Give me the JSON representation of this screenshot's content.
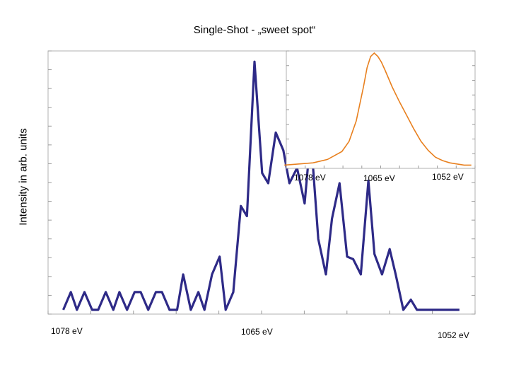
{
  "chart_data": [
    {
      "type": "line",
      "title": "Single-Shot - „sweet spot“",
      "ylabel": "Intensity in arb. units",
      "xlabel": "",
      "x_tick_labels": [
        "1078 eV",
        "1065 eV",
        "1052 eV"
      ],
      "xlim": [
        1079,
        1050.5
      ],
      "ylim": [
        0,
        1
      ],
      "grid": false,
      "series": [
        {
          "color": "#2e2a87",
          "x": [
            1078.0,
            1077.5,
            1077.1,
            1076.6,
            1076.1,
            1075.7,
            1075.2,
            1074.7,
            1074.3,
            1073.8,
            1073.3,
            1072.9,
            1072.4,
            1071.9,
            1071.5,
            1071.0,
            1070.5,
            1070.1,
            1069.6,
            1069.1,
            1068.7,
            1068.2,
            1067.7,
            1067.3,
            1066.8,
            1066.3,
            1065.9,
            1065.4,
            1064.9,
            1064.5,
            1064.0,
            1063.5,
            1063.1,
            1062.6,
            1062.1,
            1061.7,
            1061.2,
            1060.7,
            1060.3,
            1059.8,
            1059.3,
            1058.9,
            1058.4,
            1057.9,
            1057.5,
            1057.0,
            1056.5,
            1056.1,
            1055.6,
            1055.1,
            1054.7,
            1054.2,
            1053.7,
            1053.3,
            1052.8,
            1052.3,
            1051.9
          ],
          "y": [
            0.0,
            0.07,
            0.0,
            0.07,
            0.0,
            0.0,
            0.07,
            0.0,
            0.07,
            0.0,
            0.07,
            0.07,
            0.0,
            0.07,
            0.07,
            0.0,
            0.0,
            0.14,
            0.0,
            0.07,
            0.0,
            0.14,
            0.21,
            0.0,
            0.07,
            0.41,
            0.37,
            0.98,
            0.54,
            0.5,
            0.7,
            0.63,
            0.5,
            0.56,
            0.42,
            0.69,
            0.28,
            0.14,
            0.36,
            0.5,
            0.21,
            0.2,
            0.14,
            0.51,
            0.22,
            0.14,
            0.24,
            0.14,
            0.0,
            0.04,
            0.0,
            0.0,
            0.0,
            0.0,
            0.0,
            0.0,
            0.0
          ]
        }
      ]
    },
    {
      "type": "line",
      "title": "",
      "xlabel": "",
      "ylabel": "",
      "x_tick_labels": [
        "1078 eV",
        "1065 eV",
        "1052 eV"
      ],
      "xlim": [
        1079,
        1050.5
      ],
      "ylim": [
        0,
        1
      ],
      "grid": false,
      "series": [
        {
          "color": "#e8801f",
          "x": [
            1078,
            1076,
            1074,
            1072,
            1070,
            1069,
            1068,
            1067,
            1066.5,
            1066,
            1065.5,
            1065,
            1064.5,
            1064,
            1063,
            1062,
            1061,
            1060,
            1059,
            1058,
            1057,
            1056,
            1055,
            1054,
            1053,
            1052
          ],
          "y": [
            0.01,
            0.02,
            0.03,
            0.06,
            0.13,
            0.22,
            0.4,
            0.7,
            0.87,
            0.97,
            1.0,
            0.97,
            0.92,
            0.85,
            0.7,
            0.57,
            0.45,
            0.33,
            0.22,
            0.14,
            0.08,
            0.05,
            0.03,
            0.02,
            0.01,
            0.01
          ]
        }
      ]
    }
  ]
}
